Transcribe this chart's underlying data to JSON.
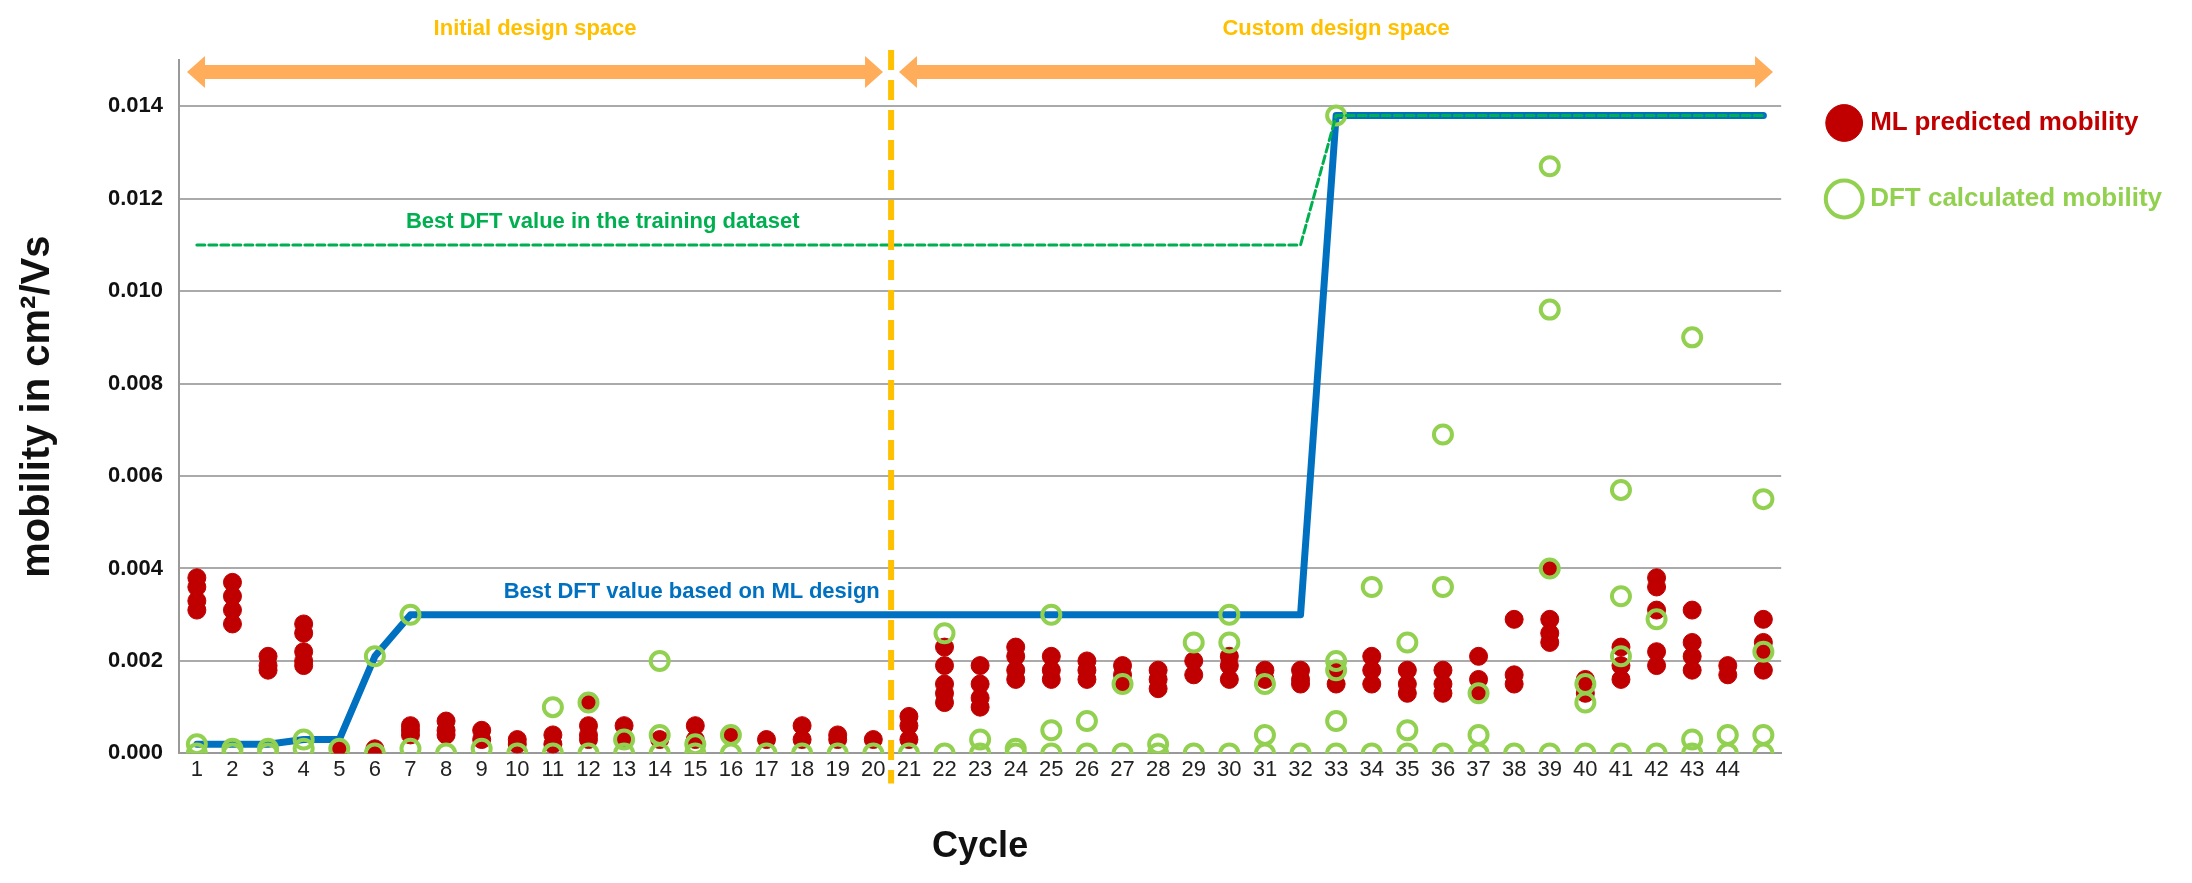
{
  "chart_data": {
    "type": "scatter",
    "xlabel": "Cycle",
    "ylabel": "mobility in cm²/Vs",
    "xlim": [
      0.5,
      45.5
    ],
    "xticks": [
      1,
      2,
      3,
      4,
      5,
      6,
      7,
      8,
      9,
      10,
      11,
      12,
      13,
      14,
      15,
      16,
      17,
      18,
      19,
      20,
      21,
      22,
      23,
      24,
      25,
      26,
      27,
      28,
      29,
      30,
      31,
      32,
      33,
      34,
      35,
      36,
      37,
      38,
      39,
      40,
      41,
      42,
      43,
      44
    ],
    "ylim": [
      0,
      0.015
    ],
    "yticks": [
      {
        "value": 0,
        "label": "0.000"
      },
      {
        "value": 0.002,
        "label": "0.002"
      },
      {
        "value": 0.004,
        "label": "0.004"
      },
      {
        "value": 0.006,
        "label": "0.006"
      },
      {
        "value": 0.008,
        "label": "0.008"
      },
      {
        "value": 0.01,
        "label": "0.010"
      },
      {
        "value": 0.012,
        "label": "0.012"
      },
      {
        "value": 0.014,
        "label": "0.014"
      }
    ],
    "grid": "y",
    "legend": "top right",
    "series": [
      {
        "type": "line",
        "color": "#0070c0",
        "marker": "none",
        "x": [
          1,
          2,
          3,
          4,
          5,
          6,
          7,
          8,
          9,
          10,
          11,
          12,
          13,
          14,
          15,
          16,
          17,
          18,
          19,
          20,
          21,
          22,
          23,
          24,
          25,
          26,
          27,
          28,
          29,
          30,
          31,
          32,
          33,
          34,
          35,
          36,
          37,
          38,
          39,
          40,
          41,
          42,
          43,
          44,
          45
        ],
        "values": [
          0.0002,
          0.0002,
          0.0002,
          0.0003,
          0.0003,
          0.0021,
          0.003,
          0.003,
          0.003,
          0.003,
          0.003,
          0.003,
          0.003,
          0.003,
          0.003,
          0.003,
          0.003,
          0.003,
          0.003,
          0.003,
          0.003,
          0.003,
          0.003,
          0.003,
          0.003,
          0.003,
          0.003,
          0.003,
          0.003,
          0.003,
          0.003,
          0.003,
          0.0138,
          0.0138,
          0.0138,
          0.0138,
          0.0138,
          0.0138,
          0.0138,
          0.0138,
          0.0138,
          0.0138,
          0.0138,
          0.0138,
          0.0138
        ]
      },
      {
        "type": "line",
        "color": "#00b050",
        "marker": "none",
        "line_style": "dashed",
        "x": [
          1,
          32,
          33,
          45
        ],
        "values": [
          0.011,
          0.011,
          0.0138,
          0.0138
        ]
      },
      {
        "name": "ML predicted mobility",
        "color": "#c00000",
        "marker": "circle",
        "x": [
          1,
          1,
          1,
          1,
          2,
          2,
          2,
          2,
          3,
          3,
          3,
          4,
          4,
          4,
          4,
          4,
          5,
          6,
          7,
          7,
          7,
          8,
          8,
          8,
          9,
          9,
          10,
          10,
          11,
          11,
          12,
          12,
          12,
          12,
          13,
          13,
          14,
          15,
          15,
          16,
          17,
          18,
          18,
          19,
          19,
          20,
          21,
          21,
          21,
          22,
          22,
          22,
          22,
          22,
          23,
          23,
          23,
          23,
          24,
          24,
          24,
          24,
          25,
          25,
          25,
          26,
          26,
          26,
          27,
          27,
          27,
          28,
          28,
          28,
          29,
          29,
          30,
          30,
          30,
          31,
          31,
          32,
          32,
          32,
          33,
          33,
          34,
          34,
          34,
          35,
          35,
          35,
          36,
          36,
          36,
          37,
          37,
          37,
          38,
          38,
          38,
          39,
          39,
          39,
          39,
          40,
          40,
          41,
          41,
          41,
          42,
          42,
          42,
          42,
          42,
          43,
          43,
          43,
          43,
          44,
          44,
          45,
          45,
          45,
          45
        ],
        "values": [
          0.0038,
          0.0036,
          0.0033,
          0.0031,
          0.0037,
          0.0034,
          0.0031,
          0.0028,
          0.0021,
          0.0019,
          0.0018,
          0.0028,
          0.0026,
          0.0022,
          0.002,
          0.0019,
          0.0001,
          0.0001,
          0.0006,
          0.0005,
          0.0004,
          0.0007,
          0.0005,
          0.0004,
          0.0005,
          0.0003,
          0.0003,
          0.0002,
          0.0004,
          0.0002,
          0.0011,
          0.0006,
          0.0004,
          0.0003,
          0.0006,
          0.0003,
          0.0003,
          0.0006,
          0.0003,
          0.0004,
          0.0003,
          0.0006,
          0.0003,
          0.0004,
          0.0003,
          0.0003,
          0.0008,
          0.0006,
          0.0003,
          0.0023,
          0.0019,
          0.0015,
          0.0013,
          0.0011,
          0.0019,
          0.0015,
          0.0012,
          0.001,
          0.0023,
          0.0021,
          0.0018,
          0.0016,
          0.0021,
          0.0018,
          0.0016,
          0.002,
          0.0018,
          0.0016,
          0.0019,
          0.0017,
          0.0015,
          0.0018,
          0.0016,
          0.0014,
          0.002,
          0.0017,
          0.0021,
          0.0019,
          0.0016,
          0.0018,
          0.0016,
          0.0018,
          0.0016,
          0.0015,
          0.0018,
          0.0015,
          0.0021,
          0.0018,
          0.0015,
          0.0018,
          0.0015,
          0.0013,
          0.0018,
          0.0015,
          0.0013,
          0.0021,
          0.0016,
          0.0013,
          0.0029,
          0.0017,
          0.0015,
          0.004,
          0.0029,
          0.0026,
          0.0024,
          0.0016,
          0.0013,
          0.0023,
          0.0019,
          0.0016,
          0.0038,
          0.0036,
          0.0031,
          0.0022,
          0.0019,
          0.0031,
          0.0024,
          0.0021,
          0.0018,
          0.0019,
          0.0017,
          0.0029,
          0.0024,
          0.0022,
          0.0018
        ]
      },
      {
        "name": "DFT calculated mobility",
        "color": "#92d050",
        "marker": "circle",
        "x": [
          1,
          1,
          2,
          2,
          3,
          3,
          4,
          4,
          5,
          6,
          6,
          7,
          7,
          8,
          9,
          10,
          11,
          11,
          12,
          12,
          13,
          13,
          14,
          14,
          14,
          15,
          15,
          16,
          16,
          17,
          18,
          19,
          20,
          21,
          22,
          22,
          23,
          23,
          24,
          24,
          25,
          25,
          25,
          26,
          26,
          27,
          27,
          28,
          28,
          29,
          29,
          30,
          30,
          30,
          31,
          31,
          31,
          32,
          33,
          33,
          33,
          33,
          33,
          34,
          34,
          35,
          35,
          35,
          36,
          36,
          36,
          37,
          37,
          37,
          38,
          39,
          39,
          39,
          39,
          40,
          40,
          40,
          41,
          41,
          41,
          41,
          42,
          42,
          43,
          43,
          43,
          44,
          44,
          45,
          45,
          45,
          45
        ],
        "values": [
          0.0002,
          0,
          0.0001,
          0,
          0.0001,
          0,
          0.0003,
          0.0001,
          0.0001,
          0.0021,
          0,
          0.003,
          0.0001,
          0,
          0.0001,
          0,
          0.001,
          0,
          0.0011,
          0,
          0.0003,
          0,
          0.002,
          0.0004,
          0,
          0.0002,
          0,
          0.0004,
          0,
          0,
          0,
          0,
          0,
          0,
          0.0026,
          0,
          0.0003,
          0,
          0.0001,
          0,
          0.003,
          0.0005,
          0,
          0.0007,
          0,
          0.0015,
          0,
          0.0002,
          0,
          0.0024,
          0,
          0.003,
          0.0024,
          0,
          0.0015,
          0.0004,
          0,
          0,
          0.0138,
          0.002,
          0.0018,
          0.0007,
          0,
          0.0036,
          0,
          0.0024,
          0.0005,
          0,
          0.0069,
          0.0036,
          0,
          0.0013,
          0.0004,
          0,
          0,
          0.0127,
          0.0096,
          0.004,
          0,
          0.0015,
          0.0011,
          0,
          0.0057,
          0.0034,
          0.0021,
          0,
          0.0029,
          0,
          0.009,
          0.0003,
          0,
          0.0004,
          0,
          0.0055,
          0.0022,
          0.0004,
          0
        ]
      }
    ],
    "ref_lines": [
      {
        "axis": "x",
        "value": 20.5,
        "color": "#ffc000",
        "line_style": "dashed"
      }
    ],
    "annotations": [
      "Initial design space",
      "Custom design space",
      {
        "text": "Best DFT value in the training dataset",
        "x": 12.4,
        "y": 0.011
      },
      {
        "text": "Best DFT value based on ML design",
        "x": 14.9,
        "y": 0.003
      }
    ]
  }
}
